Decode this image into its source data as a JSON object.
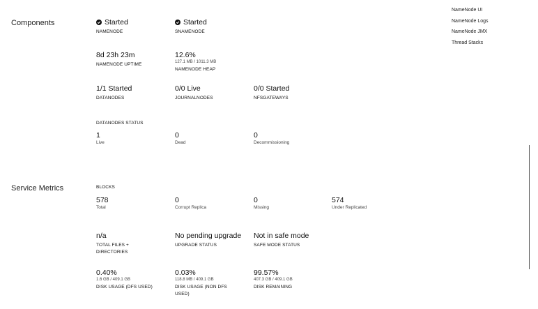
{
  "quick_links": [
    "NameNode UI",
    "NameNode Logs",
    "NameNode JMX",
    "Thread Stacks"
  ],
  "components": {
    "title": "Components",
    "namenode": {
      "value": "Started",
      "label": "NAMENODE",
      "icon": "check-circle-icon"
    },
    "snamenode": {
      "value": "Started",
      "label": "SNAMENODE",
      "icon": "check-circle-icon"
    },
    "uptime": {
      "value": "8d 23h 23m",
      "label": "NAMENODE UPTIME"
    },
    "heap": {
      "value": "12.6%",
      "sub": "127.1 MB / 1011.3 MB",
      "label": "NAMENODE HEAP"
    },
    "datanodes": {
      "value": "1/1 Started",
      "label": "DATANODES"
    },
    "journalnodes": {
      "value": "0/0 Live",
      "label": "JOURNALNODES"
    },
    "nfsgateways": {
      "value": "0/0 Started",
      "label": "NFSGATEWAYS"
    },
    "datanodes_status": {
      "label": "DATANODES STATUS",
      "live": {
        "value": "1",
        "label": "Live"
      },
      "dead": {
        "value": "0",
        "label": "Dead"
      },
      "decommissioning": {
        "value": "0",
        "label": "Decommissioning"
      }
    }
  },
  "service_metrics": {
    "title": "Service Metrics",
    "blocks": {
      "label": "BLOCKS",
      "total": {
        "value": "578",
        "label": "Total"
      },
      "corrupt": {
        "value": "0",
        "label": "Corrupt Replica"
      },
      "missing": {
        "value": "0",
        "label": "Missing"
      },
      "under_replicated": {
        "value": "574",
        "label": "Under Replicated"
      }
    },
    "total_files": {
      "value": "n/a",
      "label": "TOTAL FILES + DIRECTORIES"
    },
    "upgrade": {
      "value": "No pending upgrade",
      "label": "UPGRADE STATUS"
    },
    "safe_mode": {
      "value": "Not in safe mode",
      "label": "SAFE MODE STATUS"
    },
    "disk_dfs": {
      "value": "0.40%",
      "sub": "1.6 GB / 409.1 GB",
      "label": "DISK USAGE (DFS USED)"
    },
    "disk_non_dfs": {
      "value": "0.03%",
      "sub": "118.8 MB / 409.1 GB",
      "label": "DISK USAGE (NON DFS USED)"
    },
    "disk_remaining": {
      "value": "99.57%",
      "sub": "407.3 GB / 409.1 GB",
      "label": "DISK REMAINING"
    }
  }
}
